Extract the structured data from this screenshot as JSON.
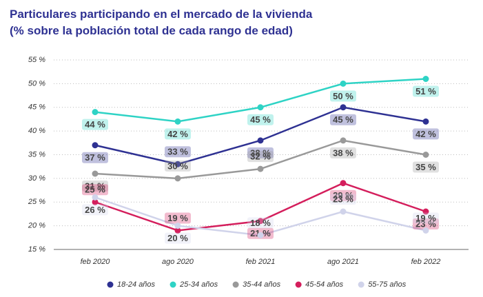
{
  "chart_data": {
    "type": "line",
    "title": "Particulares participando en el mercado de la vivienda",
    "subtitle": "(% sobre la población total de cada rango de edad)",
    "categories": [
      "feb 2020",
      "ago 2020",
      "feb 2021",
      "ago 2021",
      "feb 2022"
    ],
    "ylim": [
      15,
      55
    ],
    "yticks": [
      {
        "value": 15,
        "label": "15 %"
      },
      {
        "value": 20,
        "label": "20 %"
      },
      {
        "value": 25,
        "label": "25 %"
      },
      {
        "value": 30,
        "label": "30 %"
      },
      {
        "value": 35,
        "label": "35 %"
      },
      {
        "value": 40,
        "label": "40 %"
      },
      {
        "value": 45,
        "label": "45 %"
      },
      {
        "value": 50,
        "label": "50 %"
      },
      {
        "value": 55,
        "label": "55 %"
      }
    ],
    "grid": true,
    "series": [
      {
        "name": "18-24 años",
        "color": "#2e3192",
        "values": [
          37,
          33,
          38,
          45,
          42
        ],
        "value_labels": [
          "37 %",
          "33 %",
          "38 %",
          "45 %",
          "42 %"
        ]
      },
      {
        "name": "25-34 años",
        "color": "#2ed3c5",
        "values": [
          44,
          42,
          45,
          50,
          51
        ],
        "value_labels": [
          "44 %",
          "42 %",
          "45 %",
          "50 %",
          "51 %"
        ]
      },
      {
        "name": "35-44 años",
        "color": "#999999",
        "values": [
          31,
          30,
          32,
          38,
          35
        ],
        "value_labels": [
          "31 %",
          "30 %",
          "32 %",
          "38 %",
          "35 %"
        ]
      },
      {
        "name": "45-54 años",
        "color": "#d41e5c",
        "values": [
          25,
          19,
          21,
          29,
          23
        ],
        "value_labels": [
          "25 %",
          "19 %",
          "21 %",
          "29 %",
          "23 %"
        ]
      },
      {
        "name": "55-75 años",
        "color": "#d0d3ea",
        "values": [
          26,
          20,
          18,
          23,
          19
        ],
        "value_labels": [
          "26 %",
          "20 %",
          "18 %",
          "23 %",
          "19 %"
        ]
      }
    ]
  }
}
